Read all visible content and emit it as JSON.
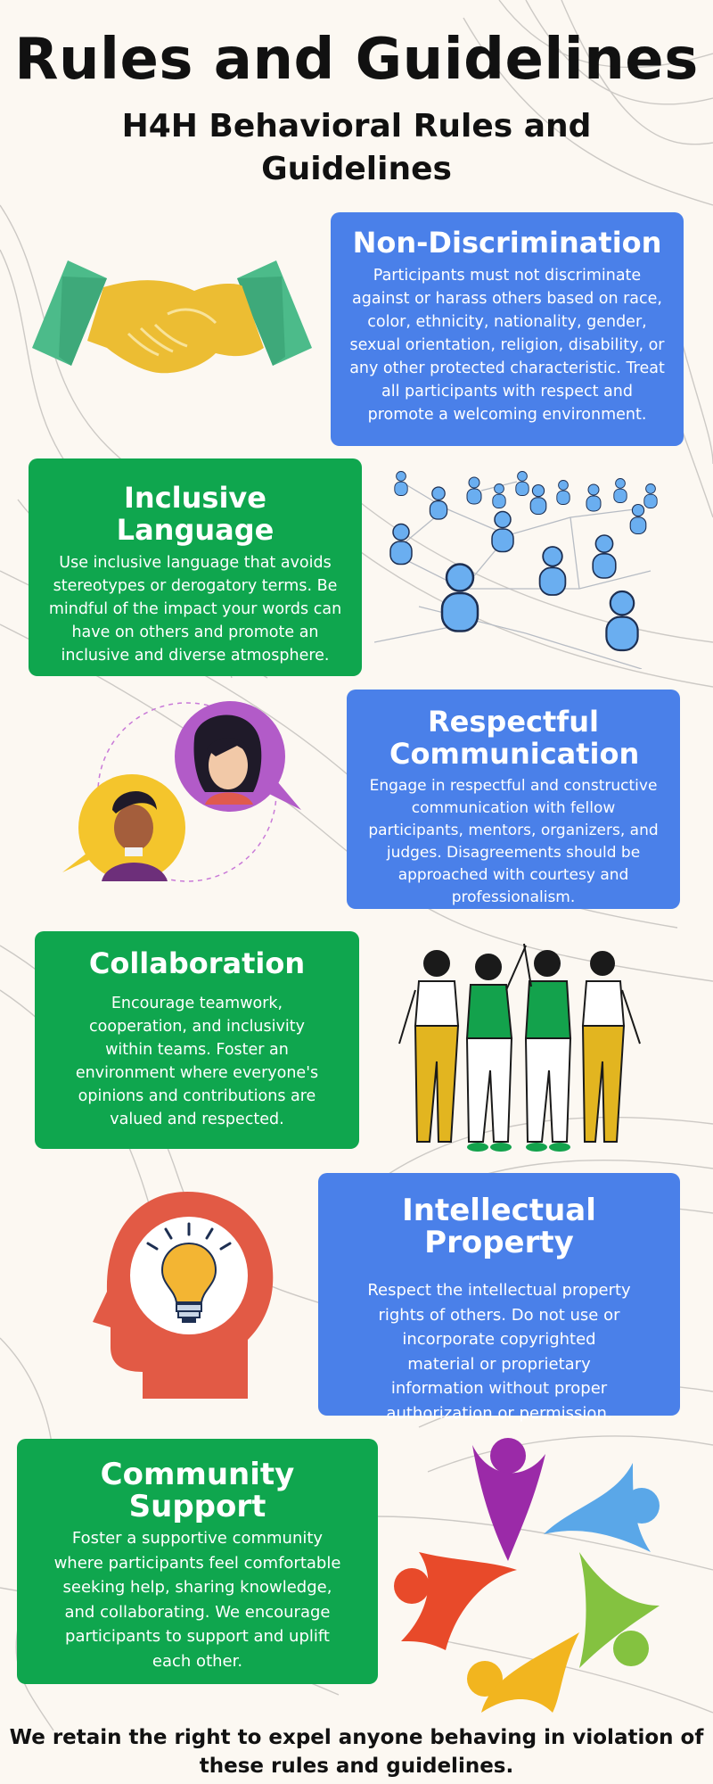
{
  "header": {
    "title": "Rules and Guidelines",
    "subtitle": "H4H Behavioral Rules and Guidelines"
  },
  "sections": [
    {
      "heading": "Non-Discrimination",
      "body": "Participants must not discriminate against or harass others based on race, color, ethnicity, nationality, gender, sexual orientation, religion, disability, or any other protected characteristic. Treat all participants with respect and promote a welcoming environment.",
      "color": "#4a80e9",
      "icon": "handshake-icon"
    },
    {
      "heading": "Inclusive Language",
      "body": "Use inclusive language that avoids stereotypes or derogatory terms. Be mindful of the impact your words can have on others and promote an inclusive and diverse atmosphere.",
      "color": "#0fa64e",
      "icon": "people-network-icon"
    },
    {
      "heading": "Respectful Communication",
      "body": "Engage in respectful and constructive communication with fellow participants, mentors, organizers, and judges. Disagreements should be approached with courtesy and professionalism.",
      "color": "#4a80e9",
      "icon": "conversation-avatars-icon"
    },
    {
      "heading": "Collaboration",
      "body": "Encourage teamwork, cooperation, and inclusivity within teams. Foster an environment where everyone's opinions and contributions are valued and respected.",
      "color": "#0fa64e",
      "icon": "team-high-five-icon"
    },
    {
      "heading": "Intellectual Property",
      "body": "Respect the intellectual property rights of others. Do not use or incorporate copyrighted material or proprietary information without proper authorization or permission.",
      "color": "#4a80e9",
      "icon": "head-lightbulb-icon"
    },
    {
      "heading": "Community Support",
      "body": "Foster a supportive community where participants feel comfortable seeking help, sharing knowledge, and collaborating. We encourage participants to support and uplift each other.",
      "color": "#0fa64e",
      "icon": "community-circle-icon"
    }
  ],
  "footer": {
    "text": "We retain the right to expel anyone behaving in violation of these rules and guidelines."
  }
}
